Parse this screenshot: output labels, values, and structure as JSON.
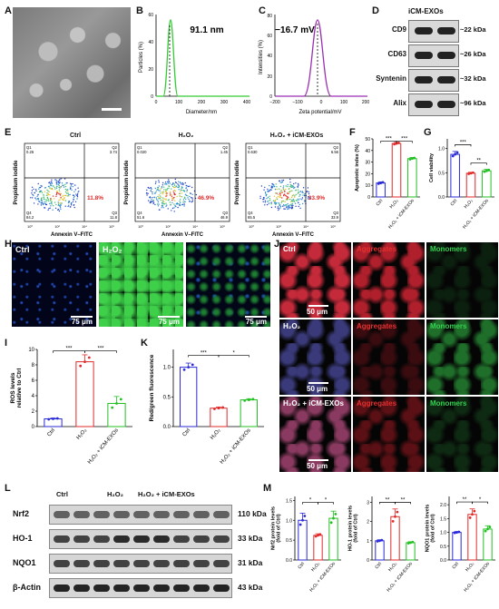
{
  "panel_labels": [
    "A",
    "B",
    "C",
    "D",
    "E",
    "F",
    "G",
    "H",
    "I",
    "J",
    "K",
    "L",
    "M"
  ],
  "panelB": {
    "annotation": "91.1 nm",
    "xlabel": "Diameter/nm",
    "ylabel": "Particles (%)",
    "xticks": [
      "0",
      "100",
      "200",
      "300",
      "400"
    ],
    "yticks": [
      "0",
      "20",
      "40",
      "60"
    ]
  },
  "panelC": {
    "annotation": "−16.7 mV",
    "xlabel": "Zeta potential/mV",
    "ylabel": "Intensities (%)",
    "xticks": [
      "−200",
      "−100",
      "0",
      "100",
      "200"
    ],
    "yticks": [
      "0",
      "20",
      "40",
      "60",
      "80"
    ]
  },
  "panelD": {
    "header": "iCM-EXOs",
    "rows": [
      {
        "name": "CD9",
        "kda": "~22 kDa"
      },
      {
        "name": "CD63",
        "kda": "~26 kDa"
      },
      {
        "name": "Syntenin",
        "kda": "~32 kDa"
      },
      {
        "name": "Alix",
        "kda": "~96 kDa"
      }
    ]
  },
  "panelE": {
    "plots": [
      {
        "title": "Ctrl",
        "q1": "Q1\n0.25",
        "q2": "Q2\n3.74",
        "q3": "Q3\n11.8",
        "q4": "Q4\n84.2",
        "pct": "11.8%"
      },
      {
        "title": "H₂O₂",
        "q1": "Q1\n0.020",
        "q2": "Q2\n1.45",
        "q3": "Q3\n46.9",
        "q4": "Q4\n51.6",
        "pct": "46.9%"
      },
      {
        "title": "H₂O₂ + iCM-EXOs",
        "q1": "Q1\n0.630",
        "q2": "Q2\n6.56",
        "q3": "Q3\n33.9",
        "q4": "Q4\n65.5",
        "pct": "33.9%"
      }
    ],
    "xlabel": "Annexin V–FITC",
    "ylabel": "Propidium iodide"
  },
  "groups": [
    "Ctrl",
    "H₂O₂",
    "H₂O₂ + iCM-EXOs"
  ],
  "panelH": {
    "labels": [
      "Ctrl",
      "H₂O₂",
      ""
    ],
    "scale": "75 μm"
  },
  "panelJ": {
    "rows": [
      "Ctrl",
      "H₂O₂",
      "H₂O₂ + iCM-EXOs"
    ],
    "col2": "Aggregates",
    "col3": "Monomers",
    "scale": "50 μm"
  },
  "panelL": {
    "groups": [
      "Ctrl",
      "H₂O₂",
      "H₂O₂ + iCM-EXOs"
    ],
    "rows": [
      {
        "name": "Nrf2",
        "kda": "110 kDa"
      },
      {
        "name": "HO-1",
        "kda": "33 kDa"
      },
      {
        "name": "NQO1",
        "kda": "31 kDa"
      },
      {
        "name": "β-Actin",
        "kda": "43 kDa"
      }
    ]
  },
  "chart_data": [
    {
      "id": "F",
      "type": "bar",
      "categories": [
        "Ctrl",
        "H₂O₂",
        "H₂O₂ + iCM-EXOs"
      ],
      "values": [
        12,
        46,
        33
      ],
      "errors": [
        1,
        1,
        1
      ],
      "ylabel": "Apoptotic index (%)",
      "ylim": [
        0,
        50
      ],
      "yticks": [
        "0",
        "10",
        "20",
        "30",
        "40",
        "50"
      ],
      "sig": [
        {
          "from": 0,
          "to": 1,
          "label": "***",
          "level": 48
        },
        {
          "from": 1,
          "to": 2,
          "label": "***",
          "level": 48
        }
      ]
    },
    {
      "id": "G",
      "type": "bar",
      "categories": [
        "Ctrl",
        "H₂O₂",
        "H₂O₂ + iCM-EXOs"
      ],
      "values": [
        0.88,
        0.49,
        0.54
      ],
      "errors": [
        0.06,
        0.02,
        0.03
      ],
      "ylabel": "Cell viability",
      "ylim": [
        0,
        1.2
      ],
      "yticks": [
        "0.0",
        "0.5",
        "1.0"
      ],
      "sig": [
        {
          "from": 0,
          "to": 1,
          "label": "***",
          "level": 1.08
        },
        {
          "from": 1,
          "to": 2,
          "label": "**",
          "level": 0.7
        }
      ]
    },
    {
      "id": "I",
      "type": "bar",
      "categories": [
        "Ctrl",
        "H₂O₂",
        "H₂O₂ + iCM-EXOs"
      ],
      "values": [
        1,
        8.4,
        3
      ],
      "errors": [
        0.1,
        0.9,
        0.9
      ],
      "ylabel": "ROS levels relative to Ctrl",
      "ylim": [
        0,
        10
      ],
      "yticks": [
        "0",
        "2",
        "4",
        "6",
        "8",
        "10"
      ],
      "sig": [
        {
          "from": 0,
          "to": 1,
          "label": "***",
          "level": 9.8
        },
        {
          "from": 1,
          "to": 2,
          "label": "***",
          "level": 9.8
        }
      ]
    },
    {
      "id": "K",
      "type": "bar",
      "categories": [
        "Ctrl",
        "H₂O₂",
        "H₂O₂ + iCM-EXOs"
      ],
      "values": [
        1.0,
        0.31,
        0.45
      ],
      "errors": [
        0.07,
        0.02,
        0.02
      ],
      "ylabel": "Red/green fluorescence",
      "ylim": [
        0,
        1.3
      ],
      "yticks": [
        "0.0",
        "0.5",
        "1.0"
      ],
      "sig": [
        {
          "from": 0,
          "to": 1,
          "label": "***",
          "level": 1.2
        },
        {
          "from": 1,
          "to": 2,
          "label": "*",
          "level": 1.2
        }
      ]
    },
    {
      "id": "M1",
      "type": "bar",
      "categories": [
        "Ctrl",
        "H₂O₂",
        "H₂O₂ + iCM-EXOs"
      ],
      "values": [
        1.0,
        0.62,
        1.05
      ],
      "errors": [
        0.18,
        0.04,
        0.18
      ],
      "ylabel": "Nrf2 protein levels (fold of Ctrl)",
      "ylim": [
        0,
        1.6
      ],
      "yticks": [
        "0.0",
        "0.5",
        "1.0",
        "1.5"
      ],
      "sig": [
        {
          "from": 0,
          "to": 1,
          "label": "*",
          "level": 1.45
        },
        {
          "from": 1,
          "to": 2,
          "label": "*",
          "level": 1.45
        }
      ]
    },
    {
      "id": "M2",
      "type": "bar",
      "categories": [
        "Ctrl",
        "H₂O₂",
        "H₂O₂ + iCM-EXOs"
      ],
      "values": [
        1.0,
        2.25,
        0.9
      ],
      "errors": [
        0.05,
        0.4,
        0.05
      ],
      "ylabel": "HO-1 protein levels (fold of Ctrl)",
      "ylim": [
        0,
        3.3
      ],
      "yticks": [
        "0",
        "1",
        "2",
        "3"
      ],
      "sig": [
        {
          "from": 0,
          "to": 1,
          "label": "**",
          "level": 3.0
        },
        {
          "from": 1,
          "to": 2,
          "label": "**",
          "level": 3.0
        }
      ]
    },
    {
      "id": "M3",
      "type": "bar",
      "categories": [
        "Ctrl",
        "H₂O₂",
        "H₂O₂ + iCM-EXOs"
      ],
      "values": [
        1.0,
        1.65,
        1.12
      ],
      "errors": [
        0.03,
        0.2,
        0.12
      ],
      "ylabel": "NQO1 protein levels (fold of Ctrl)",
      "ylim": [
        0,
        2.3
      ],
      "yticks": [
        "0.0",
        "0.5",
        "1.0",
        "1.5",
        "2.0",
        "2.5"
      ],
      "sig": [
        {
          "from": 0,
          "to": 1,
          "label": "**",
          "level": 2.1
        },
        {
          "from": 1,
          "to": 2,
          "label": "*",
          "level": 2.1
        }
      ]
    }
  ],
  "colors": {
    "ctrl": "#2a2ad8",
    "h2o2": "#e02a2a",
    "exo": "#22c022",
    "green_curve": "#33cc33",
    "purple_curve": "#9b2fb0"
  }
}
